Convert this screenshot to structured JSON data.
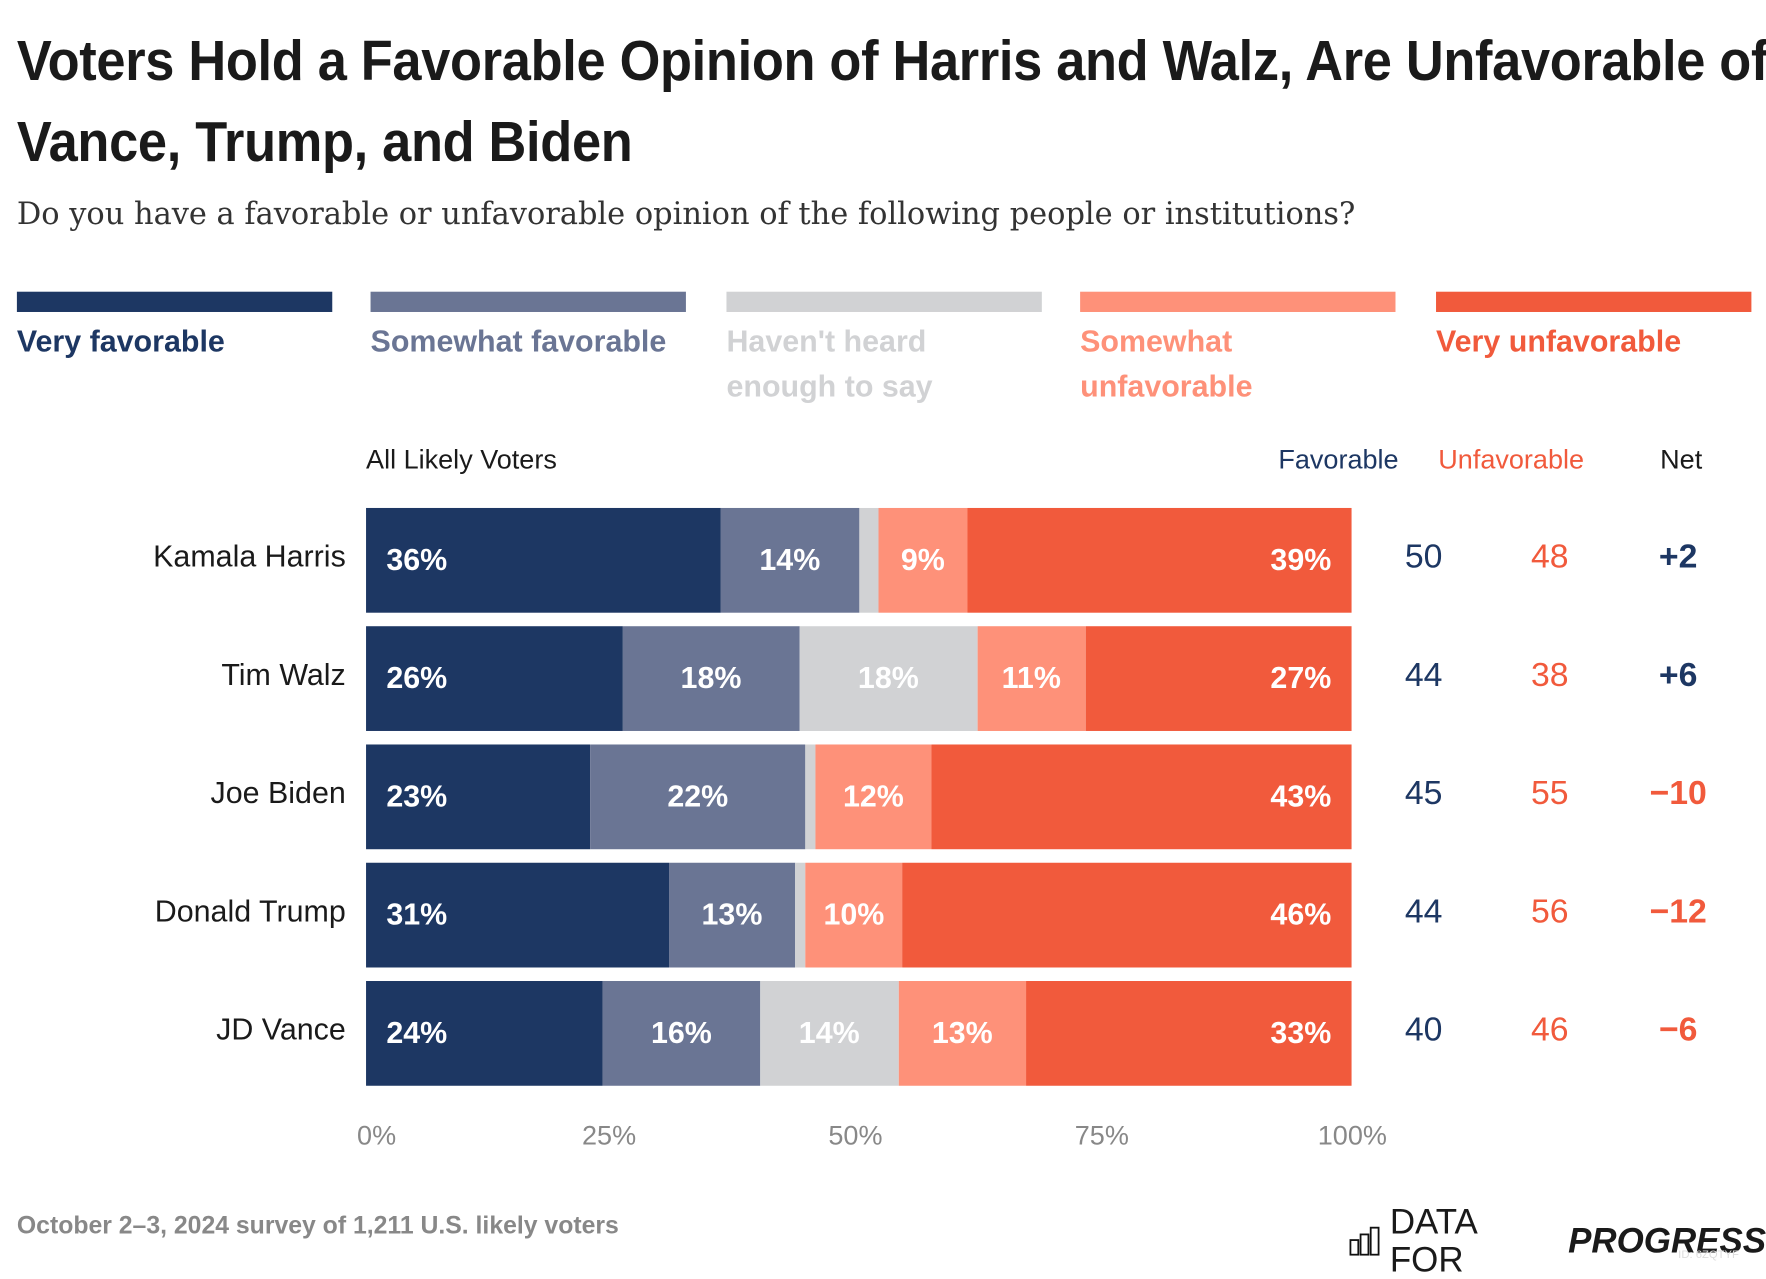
{
  "title": "Voters Hold a Favorable Opinion of Harris and Walz, Are Unfavorable of Vance, Trump, and Biden",
  "subtitle": "Do you have a favorable or unfavorable opinion of the following people or institutions?",
  "group_label": "All Likely Voters",
  "column_headers": {
    "favorable": "Favorable",
    "unfavorable": "Unfavorable",
    "net": "Net"
  },
  "footer": "October 2–3, 2024 survey of 1,211 U.S. likely voters",
  "logo": {
    "light": "DATA FOR",
    "bold": "PROGRESS",
    "id": "ID: 6ZQTYF"
  },
  "colors": {
    "very_favorable": "#1d3763",
    "somewhat_favorable": "#6a7594",
    "havent_heard": "#d1d2d4",
    "somewhat_unfavorable": "#fe9179",
    "very_unfavorable": "#f15a3c",
    "net_positive": "#1d3763",
    "net_negative": "#f15a3c"
  },
  "chart_data": {
    "type": "bar",
    "orientation": "horizontal",
    "stacked": true,
    "categories": [
      "Kamala Harris",
      "Tim Walz",
      "Joe Biden",
      "Donald Trump",
      "JD Vance"
    ],
    "series": [
      {
        "name": "Very favorable",
        "values": [
          36,
          26,
          23,
          31,
          24
        ],
        "labels": [
          "36%",
          "26%",
          "23%",
          "31%",
          "24%"
        ]
      },
      {
        "name": "Somewhat favorable",
        "values": [
          14,
          18,
          22,
          13,
          16
        ],
        "labels": [
          "14%",
          "18%",
          "22%",
          "13%",
          "16%"
        ]
      },
      {
        "name": "Haven't heard enough to say",
        "values": [
          2,
          18,
          1,
          1,
          14
        ],
        "labels": [
          "",
          "18%",
          "",
          "",
          "14%"
        ]
      },
      {
        "name": "Somewhat unfavorable",
        "values": [
          9,
          11,
          12,
          10,
          13
        ],
        "labels": [
          "9%",
          "11%",
          "12%",
          "10%",
          "13%"
        ]
      },
      {
        "name": "Very unfavorable",
        "values": [
          39,
          27,
          43,
          46,
          33
        ],
        "labels": [
          "39%",
          "27%",
          "43%",
          "46%",
          "33%"
        ]
      }
    ],
    "favorable": [
      "50",
      "44",
      "45",
      "44",
      "40"
    ],
    "unfavorable": [
      "48",
      "38",
      "55",
      "56",
      "46"
    ],
    "net": [
      "+2",
      "+6",
      "−10",
      "−12",
      "−6"
    ],
    "xlim": [
      0,
      100
    ],
    "xticks": [
      "0%",
      "25%",
      "50%",
      "75%",
      "100%"
    ],
    "legend": "top"
  }
}
